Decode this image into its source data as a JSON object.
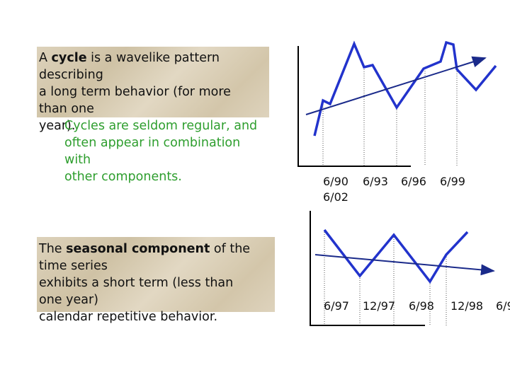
{
  "cycle": {
    "first_line": [
      "A ",
      "cycle",
      " is a wavelike pattern"
    ],
    "lines": [
      "describing",
      "a long term behavior (for more",
      "than one",
      "year)."
    ]
  },
  "cycle_note": {
    "lines": [
      "Cycles are seldom regular, and",
      "often appear in combination",
      "with",
      "other components."
    ]
  },
  "seasonal": {
    "first_line": [
      "The ",
      "seasonal component",
      " of the"
    ],
    "lines": [
      "time series",
      "exhibits a short term (less than",
      "one year)",
      "calendar repetitive behavior."
    ]
  },
  "cycle_chart": {
    "labels": [
      "6/90",
      "6/93",
      "6/96",
      "6/99",
      "6/02"
    ]
  },
  "seasonal_chart": {
    "labels": [
      "6/97",
      "12/97",
      "6/98",
      "12/98",
      "6/9"
    ]
  }
}
